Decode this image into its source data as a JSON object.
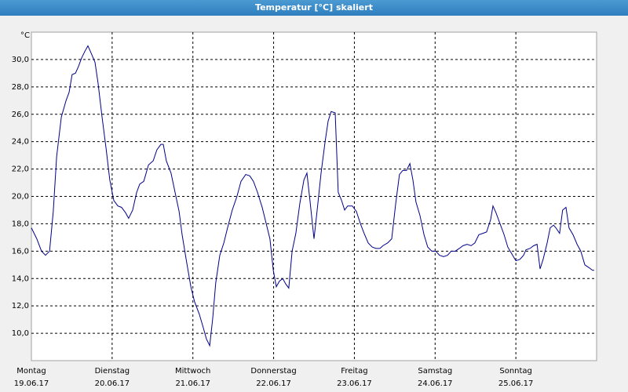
{
  "chart_data": {
    "type": "line",
    "title": "Temperatur [°C] skaliert",
    "y_unit": "°C",
    "x": [
      0,
      1.6,
      3.0,
      4.2,
      5.4,
      6.5,
      7.5,
      8.9,
      10.3,
      11.2,
      12.1,
      13.1,
      14.0,
      14.9,
      15.9,
      16.8,
      17.7,
      18.9,
      19.8,
      21.0,
      22.2,
      23.3,
      24.5,
      25.7,
      26.8,
      28.0,
      28.9,
      30.1,
      31.3,
      32.2,
      33.4,
      34.8,
      36.2,
      37.3,
      38.5,
      39.2,
      40.1,
      41.5,
      42.7,
      43.9,
      44.8,
      46.0,
      47.4,
      48.5,
      49.9,
      51.1,
      52.0,
      53.0,
      53.9,
      54.8,
      56.0,
      57.2,
      58.3,
      59.7,
      61.1,
      62.3,
      63.7,
      64.9,
      66.0,
      67.2,
      68.6,
      69.8,
      70.9,
      71.9,
      72.8,
      73.7,
      74.7,
      75.6,
      76.5,
      77.5,
      78.6,
      79.8,
      81.0,
      81.9,
      82.8,
      84.0,
      84.9,
      86.1,
      87.3,
      88.2,
      89.1,
      90.3,
      91.2,
      92.2,
      93.1,
      94.0,
      95.4,
      96.6,
      97.8,
      98.9,
      100.1,
      101.3,
      102.4,
      103.6,
      104.5,
      105.9,
      107.1,
      108.3,
      109.4,
      110.4,
      111.5,
      112.5,
      113.4,
      114.3,
      115.5,
      116.7,
      117.8,
      119.0,
      120.2,
      121.3,
      122.5,
      123.7,
      124.8,
      126.0,
      127.2,
      128.3,
      129.5,
      130.7,
      131.8,
      133.0,
      134.2,
      135.3,
      136.5,
      137.2,
      138.1,
      139.3,
      140.5,
      141.6,
      142.8,
      144.0,
      145.2,
      146.3,
      147.0,
      148.2,
      149.3,
      150.3,
      151.2,
      152.1,
      153.3,
      154.2,
      155.2,
      155.9,
      157.0,
      157.9,
      158.9,
      159.8,
      161.0,
      162.2,
      163.3,
      164.5,
      165.7,
      166.8,
      167.3
    ],
    "series": [
      {
        "name": "Temperatur",
        "color": "#00008b",
        "values": [
          17.7,
          16.9,
          16.0,
          15.7,
          16.0,
          18.9,
          22.9,
          25.8,
          27.0,
          27.6,
          28.9,
          29.0,
          29.5,
          30.1,
          30.6,
          31.0,
          30.5,
          29.8,
          28.3,
          25.8,
          23.5,
          21.2,
          19.7,
          19.3,
          19.2,
          18.8,
          18.4,
          19.0,
          20.3,
          20.9,
          21.1,
          22.3,
          22.6,
          23.4,
          23.8,
          23.8,
          22.6,
          21.7,
          20.3,
          18.9,
          17.2,
          15.4,
          13.4,
          12.3,
          11.4,
          10.4,
          9.6,
          9.1,
          11.1,
          13.7,
          15.7,
          16.6,
          17.7,
          19.0,
          20.0,
          21.1,
          21.6,
          21.5,
          21.1,
          20.3,
          19.2,
          18.0,
          16.9,
          14.6,
          13.4,
          13.8,
          14.0,
          13.6,
          13.3,
          16.0,
          17.3,
          19.5,
          21.2,
          21.7,
          19.7,
          16.9,
          18.9,
          21.7,
          24.0,
          25.5,
          26.2,
          26.1,
          20.3,
          19.7,
          19.0,
          19.3,
          19.3,
          18.9,
          18.0,
          17.3,
          16.6,
          16.3,
          16.2,
          16.2,
          16.4,
          16.6,
          16.9,
          19.5,
          21.6,
          21.9,
          21.9,
          22.4,
          21.2,
          19.6,
          18.6,
          17.2,
          16.3,
          16.0,
          16.0,
          15.7,
          15.6,
          15.7,
          16.0,
          16.0,
          16.2,
          16.4,
          16.5,
          16.4,
          16.6,
          17.2,
          17.3,
          17.4,
          18.3,
          19.3,
          18.8,
          18.0,
          17.2,
          16.3,
          15.8,
          15.3,
          15.4,
          15.7,
          16.1,
          16.2,
          16.4,
          16.5,
          14.7,
          15.4,
          16.6,
          17.7,
          17.9,
          17.7,
          17.3,
          19.0,
          19.2,
          17.7,
          17.2,
          16.5,
          16.0,
          15.0,
          14.8,
          14.6,
          14.6
        ]
      }
    ],
    "xlim": [
      0,
      168
    ],
    "xticks": [
      {
        "value": 0,
        "label": "Montag"
      },
      {
        "value": 24,
        "label": "Dienstag"
      },
      {
        "value": 48,
        "label": "Mittwoch"
      },
      {
        "value": 72,
        "label": "Donnerstag"
      },
      {
        "value": 96,
        "label": "Freitag"
      },
      {
        "value": 120,
        "label": "Samstag"
      },
      {
        "value": 144,
        "label": "Sonntag"
      }
    ],
    "xtick_dates": [
      "19.06.17",
      "20.06.17",
      "21.06.17",
      "22.06.17",
      "23.06.17",
      "24.06.17",
      "25.06.17"
    ],
    "ylim": [
      8,
      32
    ],
    "yticks": [
      {
        "value": 10,
        "label": "10,0"
      },
      {
        "value": 12,
        "label": "12,0"
      },
      {
        "value": 14,
        "label": "14,0"
      },
      {
        "value": 16,
        "label": "16,0"
      },
      {
        "value": 18,
        "label": "18,0"
      },
      {
        "value": 20,
        "label": "20,0"
      },
      {
        "value": 22,
        "label": "22,0"
      },
      {
        "value": 24,
        "label": "24,0"
      },
      {
        "value": 26,
        "label": "26,0"
      },
      {
        "value": 28,
        "label": "28,0"
      },
      {
        "value": 30,
        "label": "30,0"
      }
    ],
    "grid": true
  }
}
